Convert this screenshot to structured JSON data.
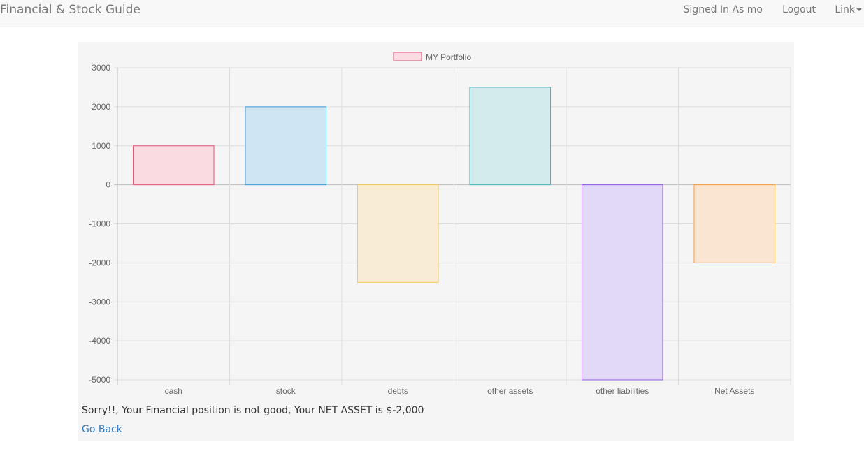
{
  "navbar": {
    "brand": "Financial & Stock Guide",
    "signed_in": "Signed In As mo",
    "logout": "Logout",
    "link": "Link"
  },
  "message": "Sorry!!, Your Financial position is not good, Your NET ASSET is $-2,000",
  "go_back": "Go Back",
  "chart_data": {
    "type": "bar",
    "title": "",
    "xlabel": "",
    "ylabel": "",
    "ylim": [
      -5000,
      3000
    ],
    "yticks": [
      3000,
      2000,
      1000,
      0,
      -1000,
      -2000,
      -3000,
      -4000,
      -5000
    ],
    "grid": true,
    "legend": "top",
    "categories": [
      "cash",
      "stock",
      "debts",
      "other assets",
      "other liabilities",
      "Net Assets"
    ],
    "series": [
      {
        "name": "MY Portfolio",
        "values": [
          1000,
          2000,
          -2500,
          2500,
          -5000,
          -2000
        ]
      }
    ],
    "bar_fills": [
      "#fadbe1",
      "#d0e5f4",
      "#f8ecd4",
      "#d3ebec",
      "#e2d8f8",
      "#f9e5d2"
    ],
    "bar_strokes": [
      "#e0557a",
      "#3b9ad7",
      "#f5c858",
      "#46b3b4",
      "#8f5ae6",
      "#f59d40"
    ],
    "legend_fill": "#fadbe1",
    "legend_stroke": "#e0557a"
  }
}
